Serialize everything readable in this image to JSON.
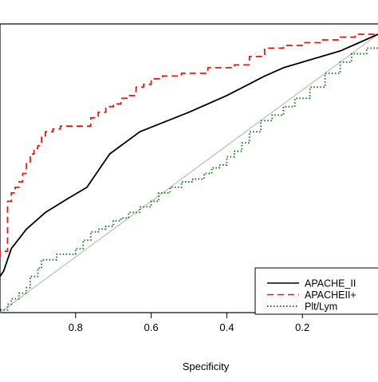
{
  "chart_data": {
    "type": "line",
    "title": "",
    "xlabel": "Specificity",
    "ylabel": "",
    "x_reversed": true,
    "xlim": [
      1.0,
      0.0
    ],
    "ylim": [
      0.0,
      1.0
    ],
    "x_ticks": [
      {
        "value": 0.8,
        "label": "0.8"
      },
      {
        "value": 0.6,
        "label": "0.6"
      },
      {
        "value": 0.4,
        "label": "0.4"
      },
      {
        "value": 0.2,
        "label": "0.2"
      }
    ],
    "grid": false,
    "legend_position": "bottom-right",
    "reference_line": {
      "x": [
        1.0,
        0.0
      ],
      "y": [
        0.0,
        1.0
      ],
      "color": "#bdbdbd"
    },
    "series": [
      {
        "name": "APACHE_II",
        "color": "#000000",
        "style": "solid",
        "step": false,
        "x": [
          1.0,
          0.99,
          0.97,
          0.93,
          0.88,
          0.82,
          0.77,
          0.74,
          0.71,
          0.68,
          0.63,
          0.5,
          0.4,
          0.3,
          0.25,
          0.2,
          0.15,
          0.1,
          0.05,
          0.0
        ],
        "y": [
          0.13,
          0.15,
          0.23,
          0.3,
          0.36,
          0.41,
          0.45,
          0.51,
          0.57,
          0.6,
          0.65,
          0.72,
          0.78,
          0.85,
          0.88,
          0.9,
          0.92,
          0.94,
          0.97,
          1.0
        ]
      },
      {
        "name": "APACHEII+",
        "color": "#e8160f",
        "style": "dashed",
        "step": true,
        "x": [
          1.0,
          0.98,
          0.97,
          0.96,
          0.95,
          0.94,
          0.93,
          0.92,
          0.91,
          0.9,
          0.89,
          0.88,
          0.86,
          0.84,
          0.8,
          0.76,
          0.74,
          0.72,
          0.7,
          0.68,
          0.66,
          0.64,
          0.62,
          0.6,
          0.57,
          0.52,
          0.45,
          0.38,
          0.34,
          0.3,
          0.25,
          0.2,
          0.15,
          0.1,
          0.06,
          0.03,
          0.0
        ],
        "y": [
          0.2,
          0.22,
          0.4,
          0.43,
          0.45,
          0.47,
          0.5,
          0.54,
          0.57,
          0.59,
          0.6,
          0.63,
          0.65,
          0.66,
          0.67,
          0.67,
          0.7,
          0.72,
          0.74,
          0.75,
          0.77,
          0.78,
          0.81,
          0.82,
          0.84,
          0.85,
          0.86,
          0.88,
          0.89,
          0.92,
          0.95,
          0.96,
          0.97,
          0.98,
          0.99,
          1.0,
          1.0
        ]
      },
      {
        "name": "Plt/Lym",
        "color": "#1a7a1a",
        "style": "dotted",
        "step": true,
        "x": [
          1.0,
          0.98,
          0.97,
          0.95,
          0.93,
          0.92,
          0.9,
          0.89,
          0.87,
          0.85,
          0.83,
          0.8,
          0.78,
          0.76,
          0.74,
          0.72,
          0.7,
          0.68,
          0.66,
          0.63,
          0.6,
          0.58,
          0.55,
          0.52,
          0.49,
          0.46,
          0.44,
          0.42,
          0.4,
          0.38,
          0.36,
          0.34,
          0.31,
          0.28,
          0.25,
          0.22,
          0.18,
          0.14,
          0.1,
          0.07,
          0.03,
          0.0
        ],
        "y": [
          0.0,
          0.01,
          0.03,
          0.05,
          0.07,
          0.09,
          0.13,
          0.16,
          0.19,
          0.19,
          0.21,
          0.21,
          0.23,
          0.26,
          0.29,
          0.3,
          0.31,
          0.33,
          0.34,
          0.36,
          0.38,
          0.4,
          0.43,
          0.45,
          0.47,
          0.48,
          0.5,
          0.52,
          0.53,
          0.56,
          0.58,
          0.61,
          0.65,
          0.69,
          0.71,
          0.74,
          0.77,
          0.81,
          0.86,
          0.9,
          0.93,
          0.95
        ]
      }
    ]
  }
}
